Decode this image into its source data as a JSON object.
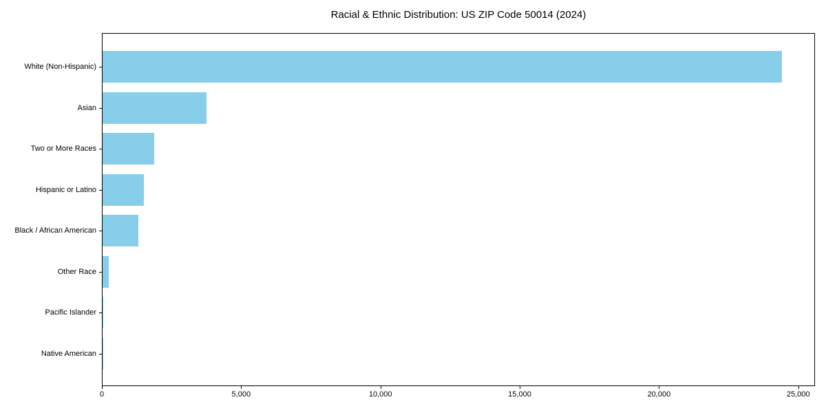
{
  "chart_data": {
    "type": "bar",
    "orientation": "horizontal",
    "title": "Racial & Ethnic Distribution: US ZIP Code 50014 (2024)",
    "categories": [
      "White (Non-Hispanic)",
      "Asian",
      "Two or More Races",
      "Hispanic or Latino",
      "Black / African American",
      "Other Race",
      "Pacific Islander",
      "Native American"
    ],
    "values": [
      24400,
      3730,
      1850,
      1490,
      1290,
      210,
      25,
      10
    ],
    "xlabel": "",
    "ylabel": "",
    "xlim": [
      0,
      25600
    ],
    "x_ticks": [
      0,
      5000,
      10000,
      15000,
      20000,
      25000
    ],
    "x_tick_labels": [
      "0",
      "5,000",
      "10,000",
      "15,000",
      "20,000",
      "25,000"
    ],
    "bar_color": "#87CEEB",
    "axis_color": "#000000",
    "text_color": "#000000",
    "background_color": "#FFFFFF",
    "grid": false,
    "legend": false
  }
}
